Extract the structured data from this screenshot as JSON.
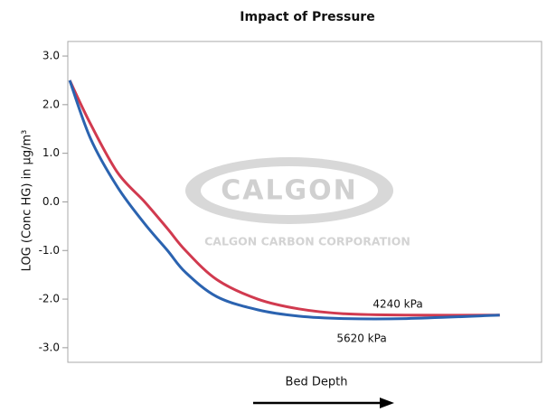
{
  "chart_data": {
    "type": "line",
    "title": "Impact of Pressure",
    "y_label": "LOG (Conc HG) in µg/m³",
    "x_label": "Bed Depth",
    "x": [
      0.4,
      4.8,
      10.5,
      16.2,
      21,
      24.8,
      31.4,
      40,
      48.6,
      58.1,
      71.4,
      91
    ],
    "xlim": [
      0,
      100
    ],
    "series": [
      {
        "name": "4240 kPa",
        "color": "#d13a4f",
        "values": [
          2.5,
          1.6,
          0.6,
          0.0,
          -0.55,
          -1.0,
          -1.6,
          -2.0,
          -2.2,
          -2.3,
          -2.33,
          -2.33
        ]
      },
      {
        "name": "5620 kPa",
        "color": "#2b63b0",
        "values": [
          2.5,
          1.3,
          0.3,
          -0.45,
          -1.0,
          -1.45,
          -1.95,
          -2.22,
          -2.35,
          -2.4,
          -2.4,
          -2.33
        ]
      }
    ],
    "ylim": [
      -3.3,
      3.3
    ],
    "yticks": [
      {
        "value": 3,
        "label": "3.0"
      },
      {
        "value": 2,
        "label": "2.0"
      },
      {
        "value": 1,
        "label": "1.0"
      },
      {
        "value": 0,
        "label": "0.0"
      },
      {
        "value": -1,
        "label": "-1.0"
      },
      {
        "value": -2,
        "label": "-2.0"
      },
      {
        "value": -3,
        "label": "-3.0"
      }
    ],
    "watermark": {
      "logo": "CALGON",
      "company": "CALGON CARBON CORPORATION"
    }
  }
}
